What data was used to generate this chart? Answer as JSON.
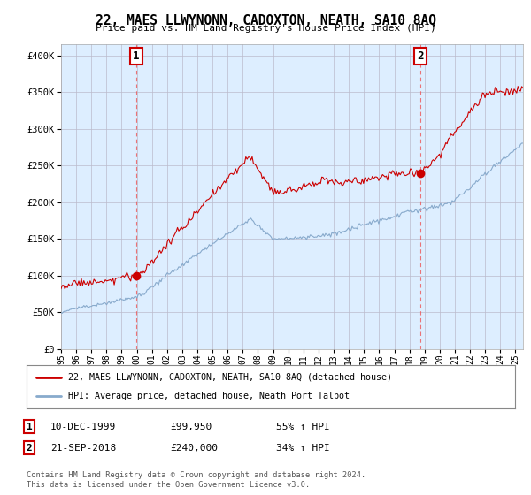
{
  "title": "22, MAES LLWYNONN, CADOXTON, NEATH, SA10 8AQ",
  "subtitle": "Price paid vs. HM Land Registry's House Price Index (HPI)",
  "ytick_values": [
    0,
    50000,
    100000,
    150000,
    200000,
    250000,
    300000,
    350000,
    400000
  ],
  "ylim": [
    0,
    415000
  ],
  "xlim_start": 1995.0,
  "xlim_end": 2025.5,
  "sale1": {
    "date_num": 1999.958,
    "price": 99950,
    "label": "1"
  },
  "sale2": {
    "date_num": 2018.72,
    "price": 240000,
    "label": "2"
  },
  "sale_color": "#cc0000",
  "hpi_color": "#88aacc",
  "vline_color": "#ee5555",
  "grid_color": "#bbbbcc",
  "background_color": "#ffffff",
  "plot_bg_color": "#ddeeff",
  "legend_label_sale": "22, MAES LLWYNONN, CADOXTON, NEATH, SA10 8AQ (detached house)",
  "legend_label_hpi": "HPI: Average price, detached house, Neath Port Talbot",
  "footer": "Contains HM Land Registry data © Crown copyright and database right 2024.\nThis data is licensed under the Open Government Licence v3.0.",
  "info1_label": "1",
  "info1_date": "10-DEC-1999",
  "info1_price": "£99,950",
  "info1_pct": "55% ↑ HPI",
  "info2_label": "2",
  "info2_date": "21-SEP-2018",
  "info2_price": "£240,000",
  "info2_pct": "34% ↑ HPI"
}
